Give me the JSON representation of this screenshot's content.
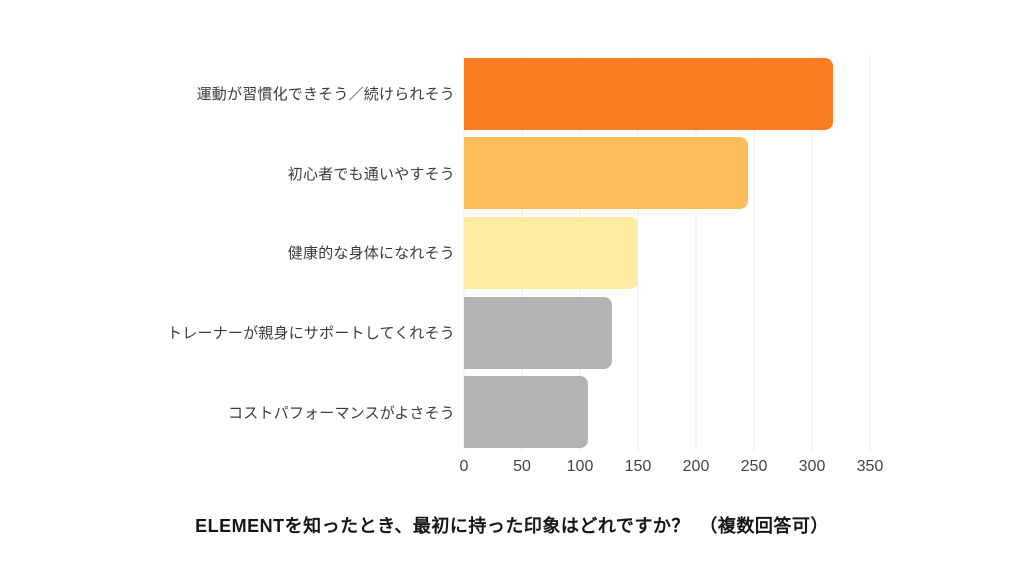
{
  "page": {
    "background": "#ffffff"
  },
  "chart_data": {
    "type": "bar",
    "orientation": "horizontal",
    "title": "ELEMENTを知ったとき、最初に持った印象はどれですか？　（複数回答可）",
    "categories": [
      "運動が習慣化できそう／続けられそう",
      "初心者でも通いやすそう",
      "健康的な身体になれそう",
      "トレーナーが親身にサポートしてくれそう",
      "コストパフォーマンスがよさそう"
    ],
    "values": [
      318,
      245,
      150,
      128,
      107
    ],
    "bar_colors": [
      "#fb7d22",
      "#fcbd5c",
      "#feeba4",
      "#b3b3b3",
      "#b3b3b3"
    ],
    "xlabel": "",
    "ylabel": "",
    "xlim": [
      0,
      350
    ],
    "xticks": [
      0,
      50,
      100,
      150,
      200,
      250,
      300,
      350
    ],
    "grid": "vertical-only",
    "gridline_color": "#ededed",
    "legend": "none",
    "title_position": "bottom"
  }
}
